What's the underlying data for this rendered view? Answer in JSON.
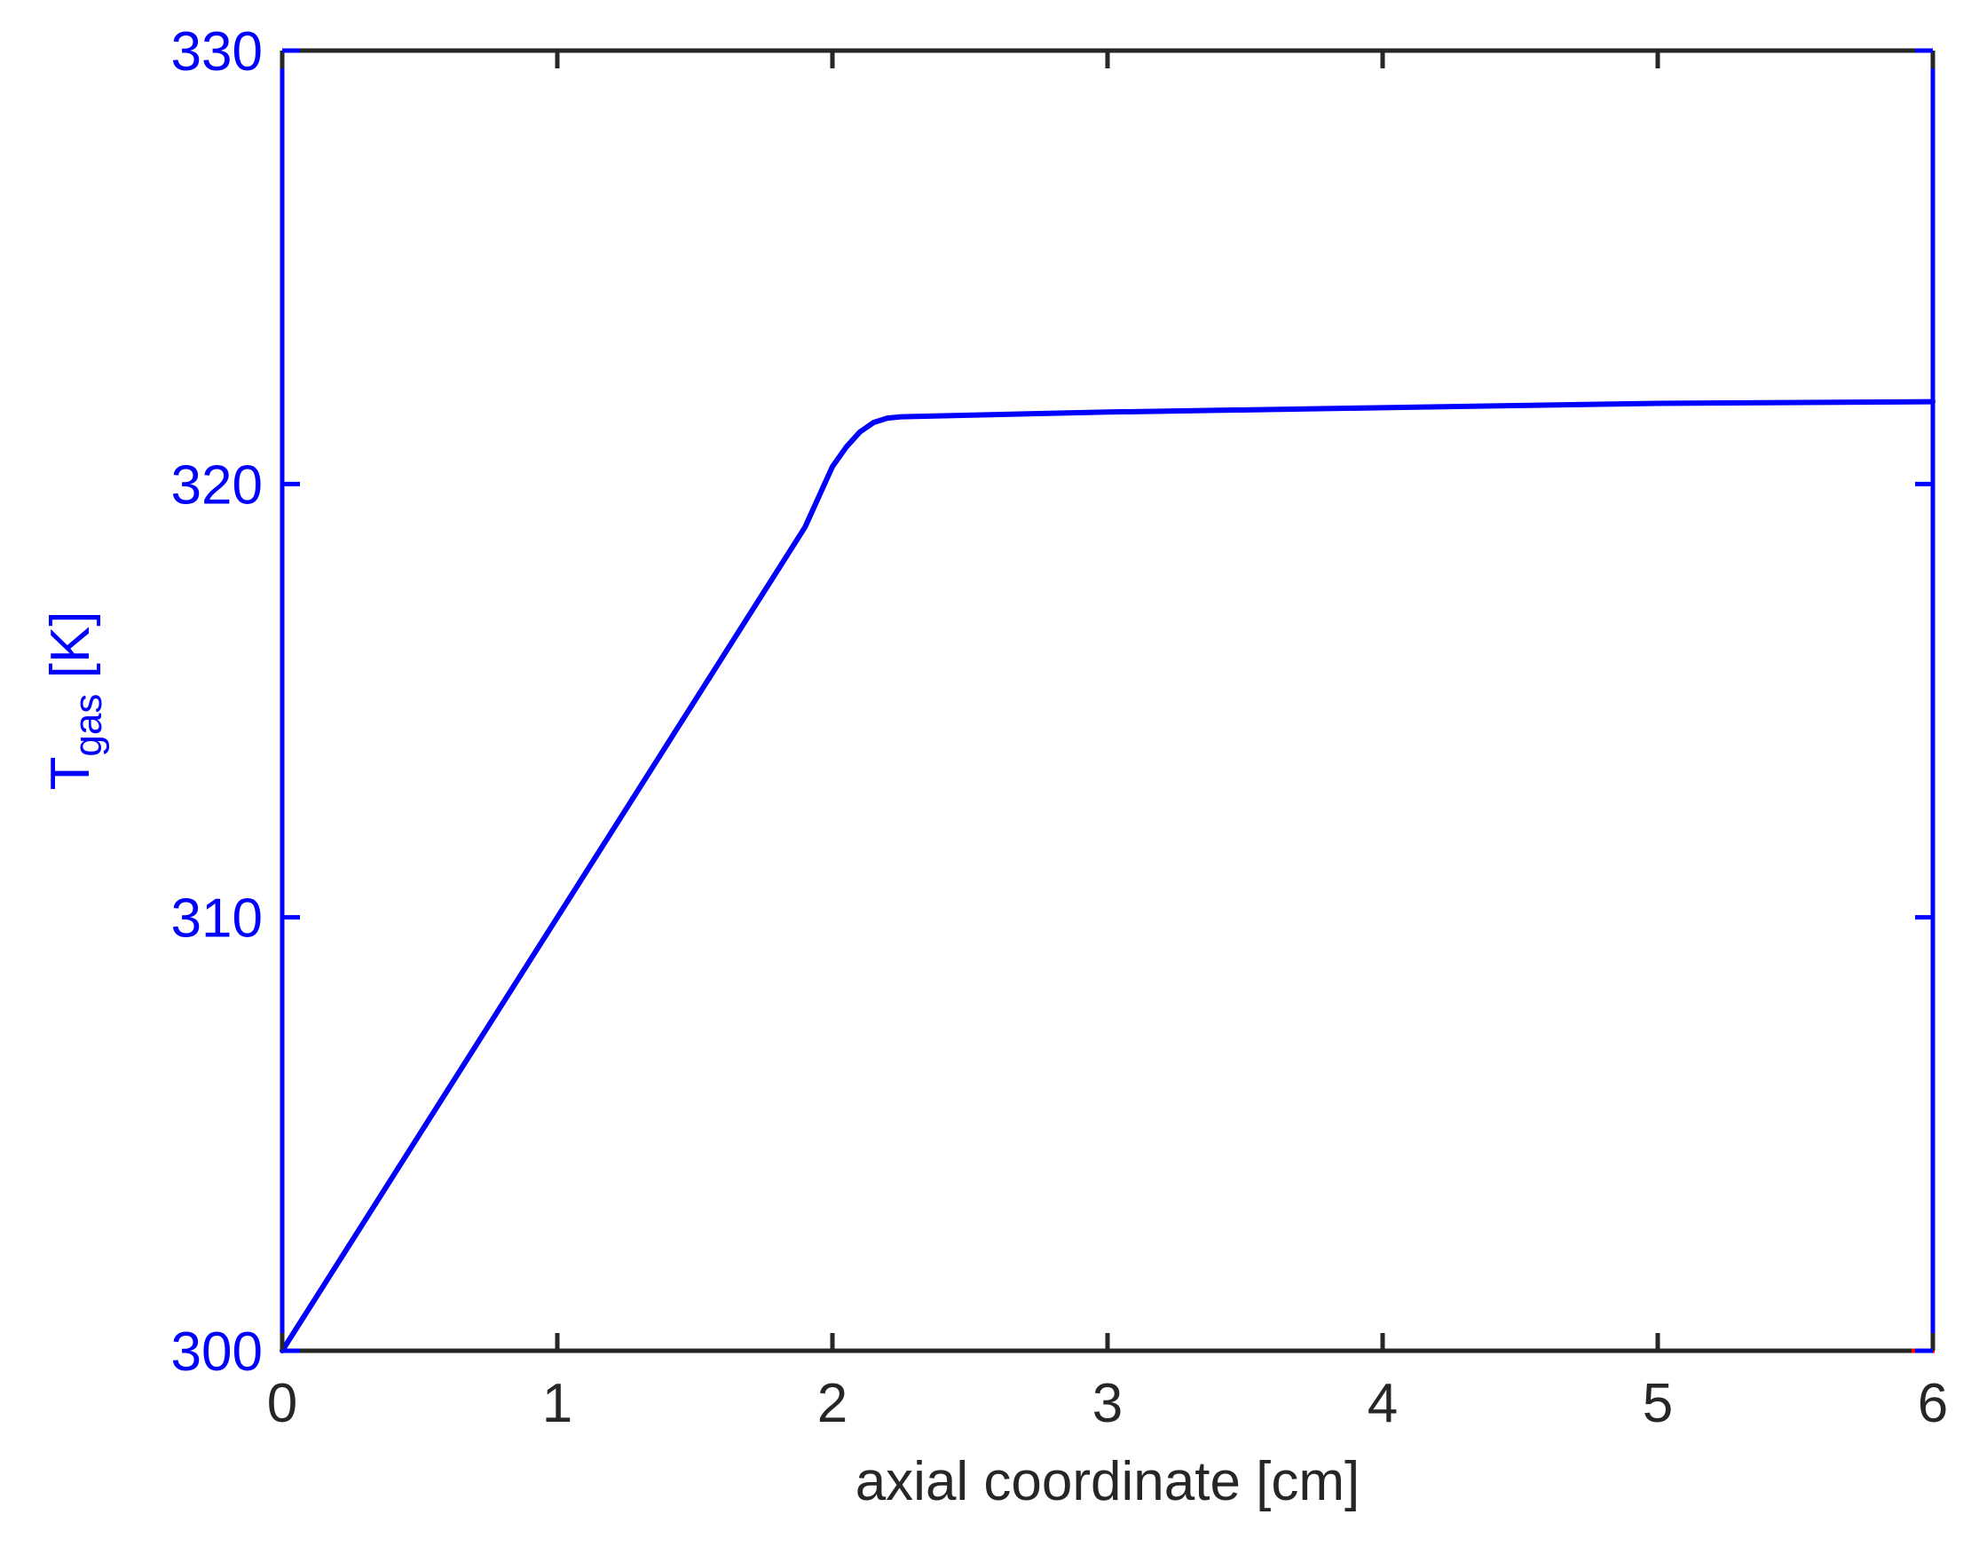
{
  "chart_data": {
    "type": "line",
    "title": "",
    "xlabel": "axial coordinate [cm]",
    "ylabel": {
      "main": "T",
      "subscript": "gas",
      "unit": " [K]"
    },
    "xlim": [
      0,
      6
    ],
    "ylim": [
      300,
      330
    ],
    "xticks": [
      0,
      1,
      2,
      3,
      4,
      5,
      6
    ],
    "xtick_labels": [
      "0",
      "1",
      "2",
      "3",
      "4",
      "5",
      "6"
    ],
    "yticks": [
      300,
      310,
      320,
      330
    ],
    "ytick_labels": [
      "300",
      "310",
      "320",
      "330"
    ],
    "grid": false,
    "legend": "none",
    "colors": {
      "series": "#0000ff",
      "y_axis": "#0000ff",
      "x_axis": "#262626",
      "marker": "#ff0000"
    },
    "series": [
      {
        "x": [
          0,
          0.5,
          1.0,
          1.5,
          1.9,
          2.0,
          2.05,
          2.1,
          2.15,
          2.2,
          2.25,
          2.3,
          3,
          4,
          5,
          6
        ],
        "y": [
          300,
          305.0,
          310.0,
          315.0,
          319.0,
          320.4,
          320.85,
          321.2,
          321.42,
          321.52,
          321.55,
          321.56,
          321.66,
          321.76,
          321.86,
          321.9
        ]
      }
    ]
  }
}
